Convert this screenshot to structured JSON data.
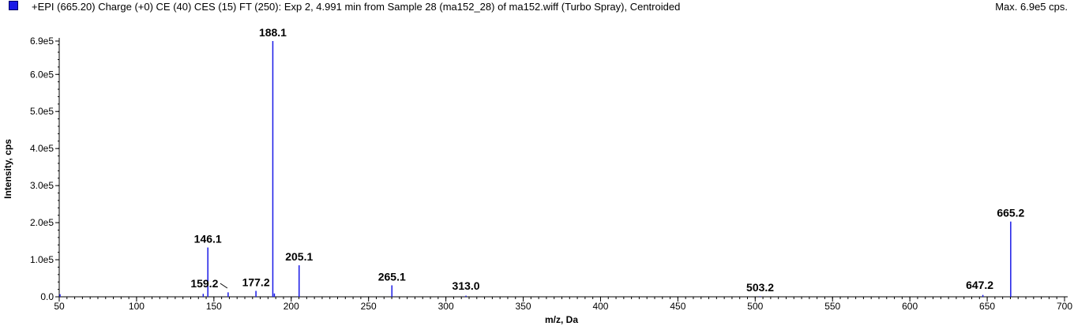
{
  "header": {
    "title": "+EPI (665.20) Charge (+0) CE (40) CES (15) FT (250): Exp 2, 4.991 min from Sample 28 (ma152_28) of ma152.wiff (Turbo Spray), Centroided",
    "max_label": "Max. 6.9e5 cps.",
    "series_color": "#1a1ae6"
  },
  "chart_data": {
    "type": "bar",
    "xlabel": "m/z, Da",
    "ylabel": "Intensity, cps",
    "xlim": [
      50,
      700
    ],
    "ylim": [
      0,
      690000
    ],
    "x_ticks": [
      {
        "v": 50,
        "label": "50"
      },
      {
        "v": 100,
        "label": "100"
      },
      {
        "v": 150,
        "label": "150"
      },
      {
        "v": 200,
        "label": "200"
      },
      {
        "v": 250,
        "label": "250"
      },
      {
        "v": 300,
        "label": "300"
      },
      {
        "v": 350,
        "label": "350"
      },
      {
        "v": 400,
        "label": "400"
      },
      {
        "v": 450,
        "label": "450"
      },
      {
        "v": 500,
        "label": "500"
      },
      {
        "v": 550,
        "label": "550"
      },
      {
        "v": 600,
        "label": "600"
      },
      {
        "v": 650,
        "label": "650"
      },
      {
        "v": 700,
        "label": "700"
      }
    ],
    "y_ticks": [
      {
        "v": 0,
        "label": "0.0"
      },
      {
        "v": 100000,
        "label": "1.0e5"
      },
      {
        "v": 200000,
        "label": "2.0e5"
      },
      {
        "v": 300000,
        "label": "3.0e5"
      },
      {
        "v": 400000,
        "label": "4.0e5"
      },
      {
        "v": 500000,
        "label": "5.0e5"
      },
      {
        "v": 600000,
        "label": "6.0e5"
      },
      {
        "v": 690000,
        "label": "6.9e5"
      }
    ],
    "peaks": [
      {
        "mz": 50.5,
        "intensity": 7000
      },
      {
        "mz": 143.1,
        "intensity": 8000
      },
      {
        "mz": 146.1,
        "intensity": 133000,
        "label": "146.1"
      },
      {
        "mz": 159.2,
        "intensity": 12000,
        "label": "159.2"
      },
      {
        "mz": 177.2,
        "intensity": 16000,
        "label": "177.2"
      },
      {
        "mz": 188.1,
        "intensity": 690000,
        "label": "188.1"
      },
      {
        "mz": 189.1,
        "intensity": 9000
      },
      {
        "mz": 205.1,
        "intensity": 85000,
        "label": "205.1"
      },
      {
        "mz": 265.1,
        "intensity": 31000,
        "label": "265.1"
      },
      {
        "mz": 313.0,
        "intensity": 3000,
        "label": "313.0"
      },
      {
        "mz": 503.2,
        "intensity": 1500,
        "label": "503.2"
      },
      {
        "mz": 647.2,
        "intensity": 5000,
        "label": "647.2"
      },
      {
        "mz": 665.2,
        "intensity": 203000,
        "label": "665.2"
      }
    ]
  }
}
